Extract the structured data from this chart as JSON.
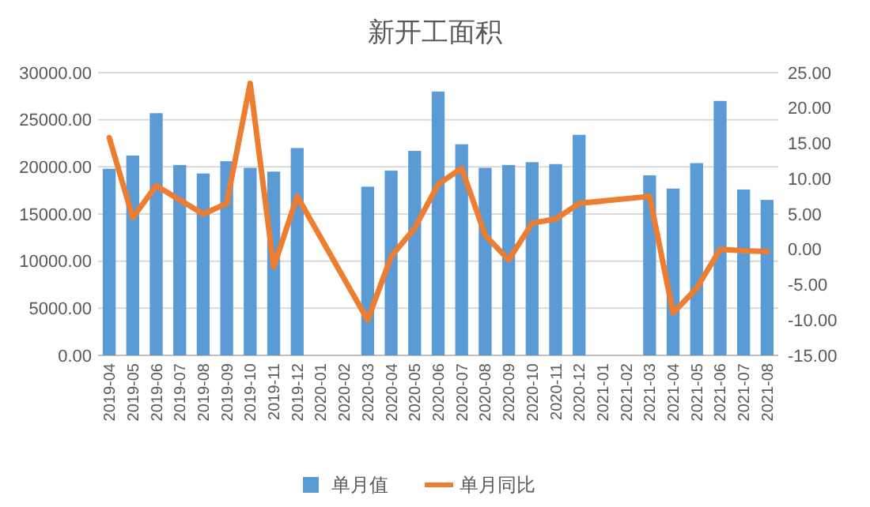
{
  "chart_data": {
    "type": "bar",
    "title": "新开工面积",
    "categories": [
      "2019-04",
      "2019-05",
      "2019-06",
      "2019-07",
      "2019-08",
      "2019-09",
      "2019-10",
      "2019-11",
      "2019-12",
      "2020-01",
      "2020-02",
      "2020-03",
      "2020-04",
      "2020-05",
      "2020-06",
      "2020-07",
      "2020-08",
      "2020-09",
      "2020-10",
      "2020-11",
      "2020-12",
      "2021-01",
      "2021-02",
      "2021-03",
      "2021-04",
      "2021-05",
      "2021-06",
      "2021-07",
      "2021-08"
    ],
    "series": [
      {
        "name": "单月值",
        "color": "#5b9bd5",
        "values": [
          19800,
          21200,
          25700,
          20200,
          19300,
          20600,
          19900,
          19500,
          22000,
          null,
          null,
          17900,
          19600,
          21700,
          28000,
          22400,
          19900,
          20200,
          20500,
          20300,
          23400,
          null,
          null,
          19100,
          17700,
          20400,
          27000,
          17600,
          16500
        ]
      },
      {
        "name": "单月同比",
        "type": "line",
        "axis": "y2",
        "color": "#ed7d31",
        "values": [
          15.8,
          4.5,
          9,
          7,
          5,
          6.5,
          23.5,
          -2.5,
          7.5,
          null,
          null,
          -10,
          -1,
          3,
          9.2,
          11.5,
          2,
          -1.5,
          3.7,
          4.3,
          6.5,
          null,
          null,
          7.5,
          -9,
          -5.5,
          0,
          -0.2,
          -0.3
        ]
      }
    ],
    "ylim": [
      0,
      30000
    ],
    "yticks": [
      {
        "value": 0,
        "label": "0.00"
      },
      {
        "value": 5000,
        "label": "5000.00"
      },
      {
        "value": 10000,
        "label": "10000.00"
      },
      {
        "value": 15000,
        "label": "15000.00"
      },
      {
        "value": 20000,
        "label": "20000.00"
      },
      {
        "value": 25000,
        "label": "25000.00"
      },
      {
        "value": 30000,
        "label": "30000.00"
      }
    ],
    "y2lim": [
      -15,
      25
    ],
    "y2ticks": [
      {
        "value": -15,
        "label": "-15.00"
      },
      {
        "value": -10,
        "label": "-10.00"
      },
      {
        "value": -5,
        "label": "-5.00"
      },
      {
        "value": 0,
        "label": "0.00"
      },
      {
        "value": 5,
        "label": "5.00"
      },
      {
        "value": 10,
        "label": "10.00"
      },
      {
        "value": 15,
        "label": "15.00"
      },
      {
        "value": 20,
        "label": "20.00"
      },
      {
        "value": 25,
        "label": "25.00"
      }
    ],
    "grid": "y",
    "legend": "bottom"
  }
}
